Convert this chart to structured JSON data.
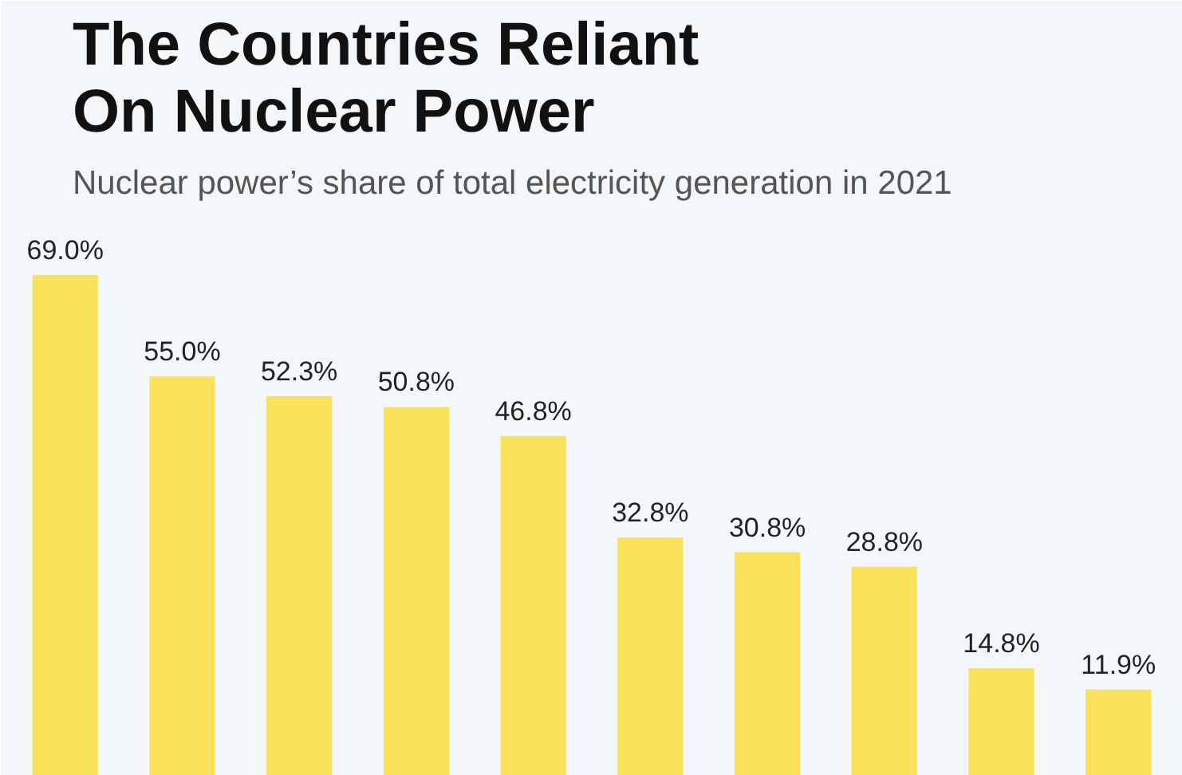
{
  "chart_data": {
    "type": "bar",
    "title": "The Countries Reliant\nOn Nuclear Power",
    "subtitle": "Nuclear power’s share of total electricity generation in 2021",
    "categories": [
      null,
      null,
      null,
      null,
      null,
      null,
      null,
      null,
      null,
      null
    ],
    "values": [
      69.0,
      55.0,
      52.3,
      50.8,
      46.8,
      32.8,
      30.8,
      28.8,
      14.8,
      11.9
    ],
    "value_labels": [
      "69.0%",
      "55.0%",
      "52.3%",
      "50.8%",
      "46.8%",
      "32.8%",
      "30.8%",
      "28.8%",
      "14.8%",
      "11.9%"
    ],
    "color": "#f9e15a",
    "grid": false,
    "tick_labels": false
  }
}
